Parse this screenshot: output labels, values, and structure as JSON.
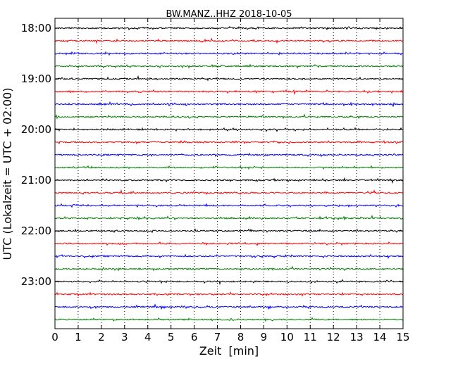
{
  "chart_data": {
    "type": "line",
    "title": "BW.MANZ..HHZ 2018-10-05",
    "xlabel": "Zeit  [min]",
    "ylabel": "UTC (Lokalzeit = UTC + 02:00)",
    "xlim": [
      0,
      15
    ],
    "x_ticks": [
      "0",
      "1",
      "2",
      "3",
      "4",
      "5",
      "6",
      "7",
      "8",
      "9",
      "10",
      "11",
      "12",
      "13",
      "14",
      "15"
    ],
    "y_tick_labels": [
      "18:00",
      "19:00",
      "20:00",
      "21:00",
      "22:00",
      "23:00"
    ],
    "grid": "vertical dotted at each minute",
    "trace_colors": [
      "#000000",
      "#ff0000",
      "#0000ff",
      "#008000"
    ],
    "traces": [
      {
        "start": "18:00",
        "color": "#000000"
      },
      {
        "start": "18:15",
        "color": "#ff0000"
      },
      {
        "start": "18:30",
        "color": "#0000ff"
      },
      {
        "start": "18:45",
        "color": "#008000"
      },
      {
        "start": "19:00",
        "color": "#000000"
      },
      {
        "start": "19:15",
        "color": "#ff0000"
      },
      {
        "start": "19:30",
        "color": "#0000ff"
      },
      {
        "start": "19:45",
        "color": "#008000"
      },
      {
        "start": "20:00",
        "color": "#000000"
      },
      {
        "start": "20:15",
        "color": "#ff0000"
      },
      {
        "start": "20:30",
        "color": "#0000ff"
      },
      {
        "start": "20:45",
        "color": "#008000"
      },
      {
        "start": "21:00",
        "color": "#000000"
      },
      {
        "start": "21:15",
        "color": "#ff0000"
      },
      {
        "start": "21:30",
        "color": "#0000ff"
      },
      {
        "start": "21:45",
        "color": "#008000"
      },
      {
        "start": "22:00",
        "color": "#000000"
      },
      {
        "start": "22:15",
        "color": "#ff0000"
      },
      {
        "start": "22:30",
        "color": "#0000ff"
      },
      {
        "start": "22:45",
        "color": "#008000"
      },
      {
        "start": "23:00",
        "color": "#000000"
      },
      {
        "start": "23:15",
        "color": "#ff0000"
      },
      {
        "start": "23:30",
        "color": "#0000ff"
      },
      {
        "start": "23:45",
        "color": "#008000"
      }
    ]
  }
}
